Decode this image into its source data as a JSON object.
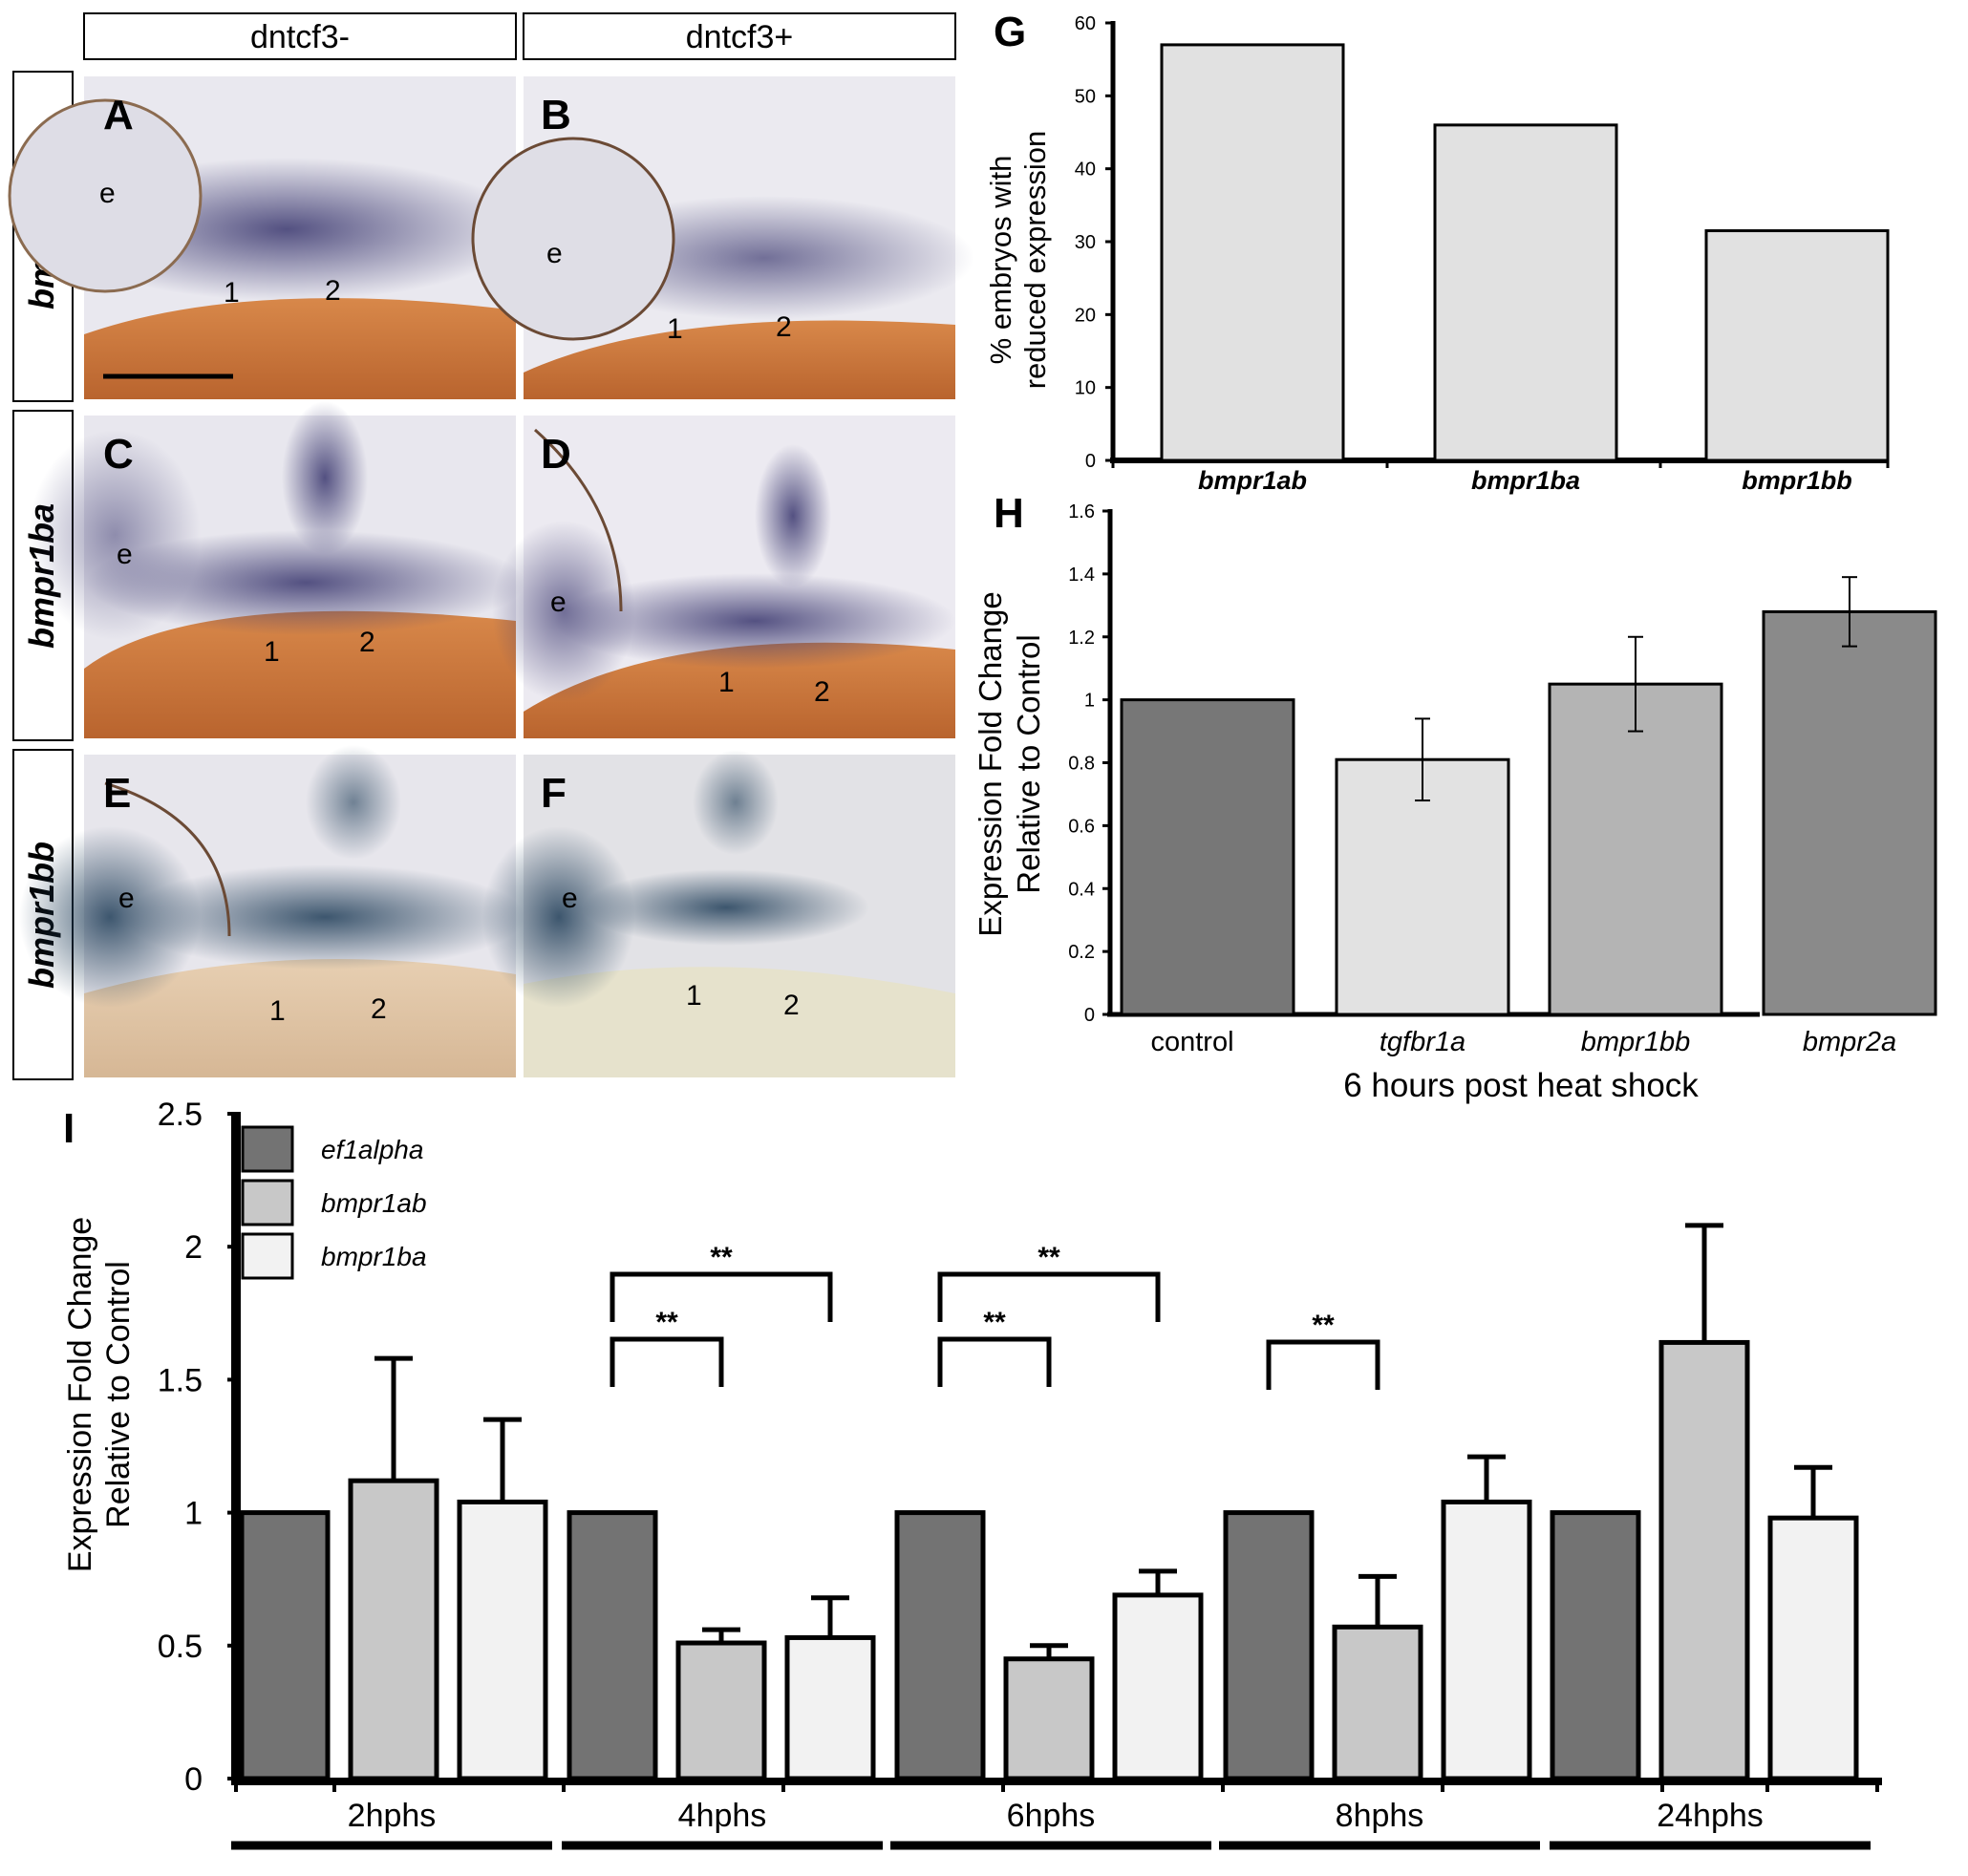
{
  "columns": {
    "left": "dntcf3-",
    "right": "dntcf3+"
  },
  "rows": [
    {
      "gene": "bmpr1ab",
      "panels": [
        "A",
        "B"
      ]
    },
    {
      "gene": "bmpr1ba",
      "panels": [
        "C",
        "D"
      ]
    },
    {
      "gene": "bmpr1bb",
      "panels": [
        "E",
        "F"
      ]
    }
  ],
  "image_labels": {
    "eye": "e",
    "arch1": "1",
    "arch2": "2"
  },
  "colors": {
    "dark_bar": "#737373",
    "mid_bar": "#c8c8c8",
    "light_bar": "#f2f2f2",
    "g_bar": "#e1e1e1",
    "h_control": "#777777",
    "h_tgfbr1a": "#e2e2e2",
    "h_bmpr1bb": "#b4b4b4",
    "h_bmpr2a": "#8a8a8a"
  },
  "chart_data": [
    {
      "panel": "G",
      "type": "bar",
      "categories": [
        "bmpr1ab",
        "bmpr1ba",
        "bmpr1bb"
      ],
      "values": [
        57,
        46,
        31.5
      ],
      "ylabel": "% embryos with reduced expression",
      "ylabel_lines": [
        "% embryos with",
        "reduced expression"
      ],
      "ylim": [
        0,
        60
      ],
      "yticks": [
        "0",
        "10",
        "20",
        "30",
        "40",
        "50",
        "60"
      ]
    },
    {
      "panel": "H",
      "type": "bar",
      "categories": [
        "control",
        "tgfbr1a",
        "bmpr1bb",
        "bmpr2a"
      ],
      "values": [
        1.0,
        0.81,
        1.05,
        1.28
      ],
      "errors": [
        0,
        0.13,
        0.15,
        0.11
      ],
      "xlabel": "6 hours post heat shock",
      "ylabel_lines": [
        "Expression Fold Change",
        "Relative to Control"
      ],
      "ylim": [
        0,
        1.6
      ],
      "yticks": [
        "0",
        "0.2",
        "0.4",
        "0.6",
        "0.8",
        "1",
        "1.2",
        "1.4",
        "1.6"
      ]
    },
    {
      "panel": "I",
      "type": "bar",
      "categories": [
        "2hphs",
        "4hphs",
        "6hphs",
        "8hphs",
        "24hphs"
      ],
      "series": [
        {
          "name": "ef1alpha",
          "values": [
            1.0,
            1.0,
            1.0,
            1.0,
            1.0
          ],
          "errors": [
            0,
            0,
            0,
            0,
            0
          ]
        },
        {
          "name": "bmpr1ab",
          "values": [
            1.12,
            0.51,
            0.45,
            0.57,
            1.64
          ],
          "errors": [
            0.46,
            0.05,
            0.05,
            0.19,
            0.44
          ]
        },
        {
          "name": "bmpr1ba",
          "values": [
            1.04,
            0.53,
            0.69,
            1.04,
            0.98
          ],
          "errors": [
            0.31,
            0.15,
            0.09,
            0.17,
            0.19
          ]
        }
      ],
      "significance": "**",
      "ylabel_lines": [
        "Expression Fold Change",
        "Relative to Control"
      ],
      "ylim": [
        0,
        2.5
      ],
      "yticks": [
        "0",
        "0.5",
        "1",
        "1.5",
        "2",
        "2.5"
      ]
    }
  ]
}
